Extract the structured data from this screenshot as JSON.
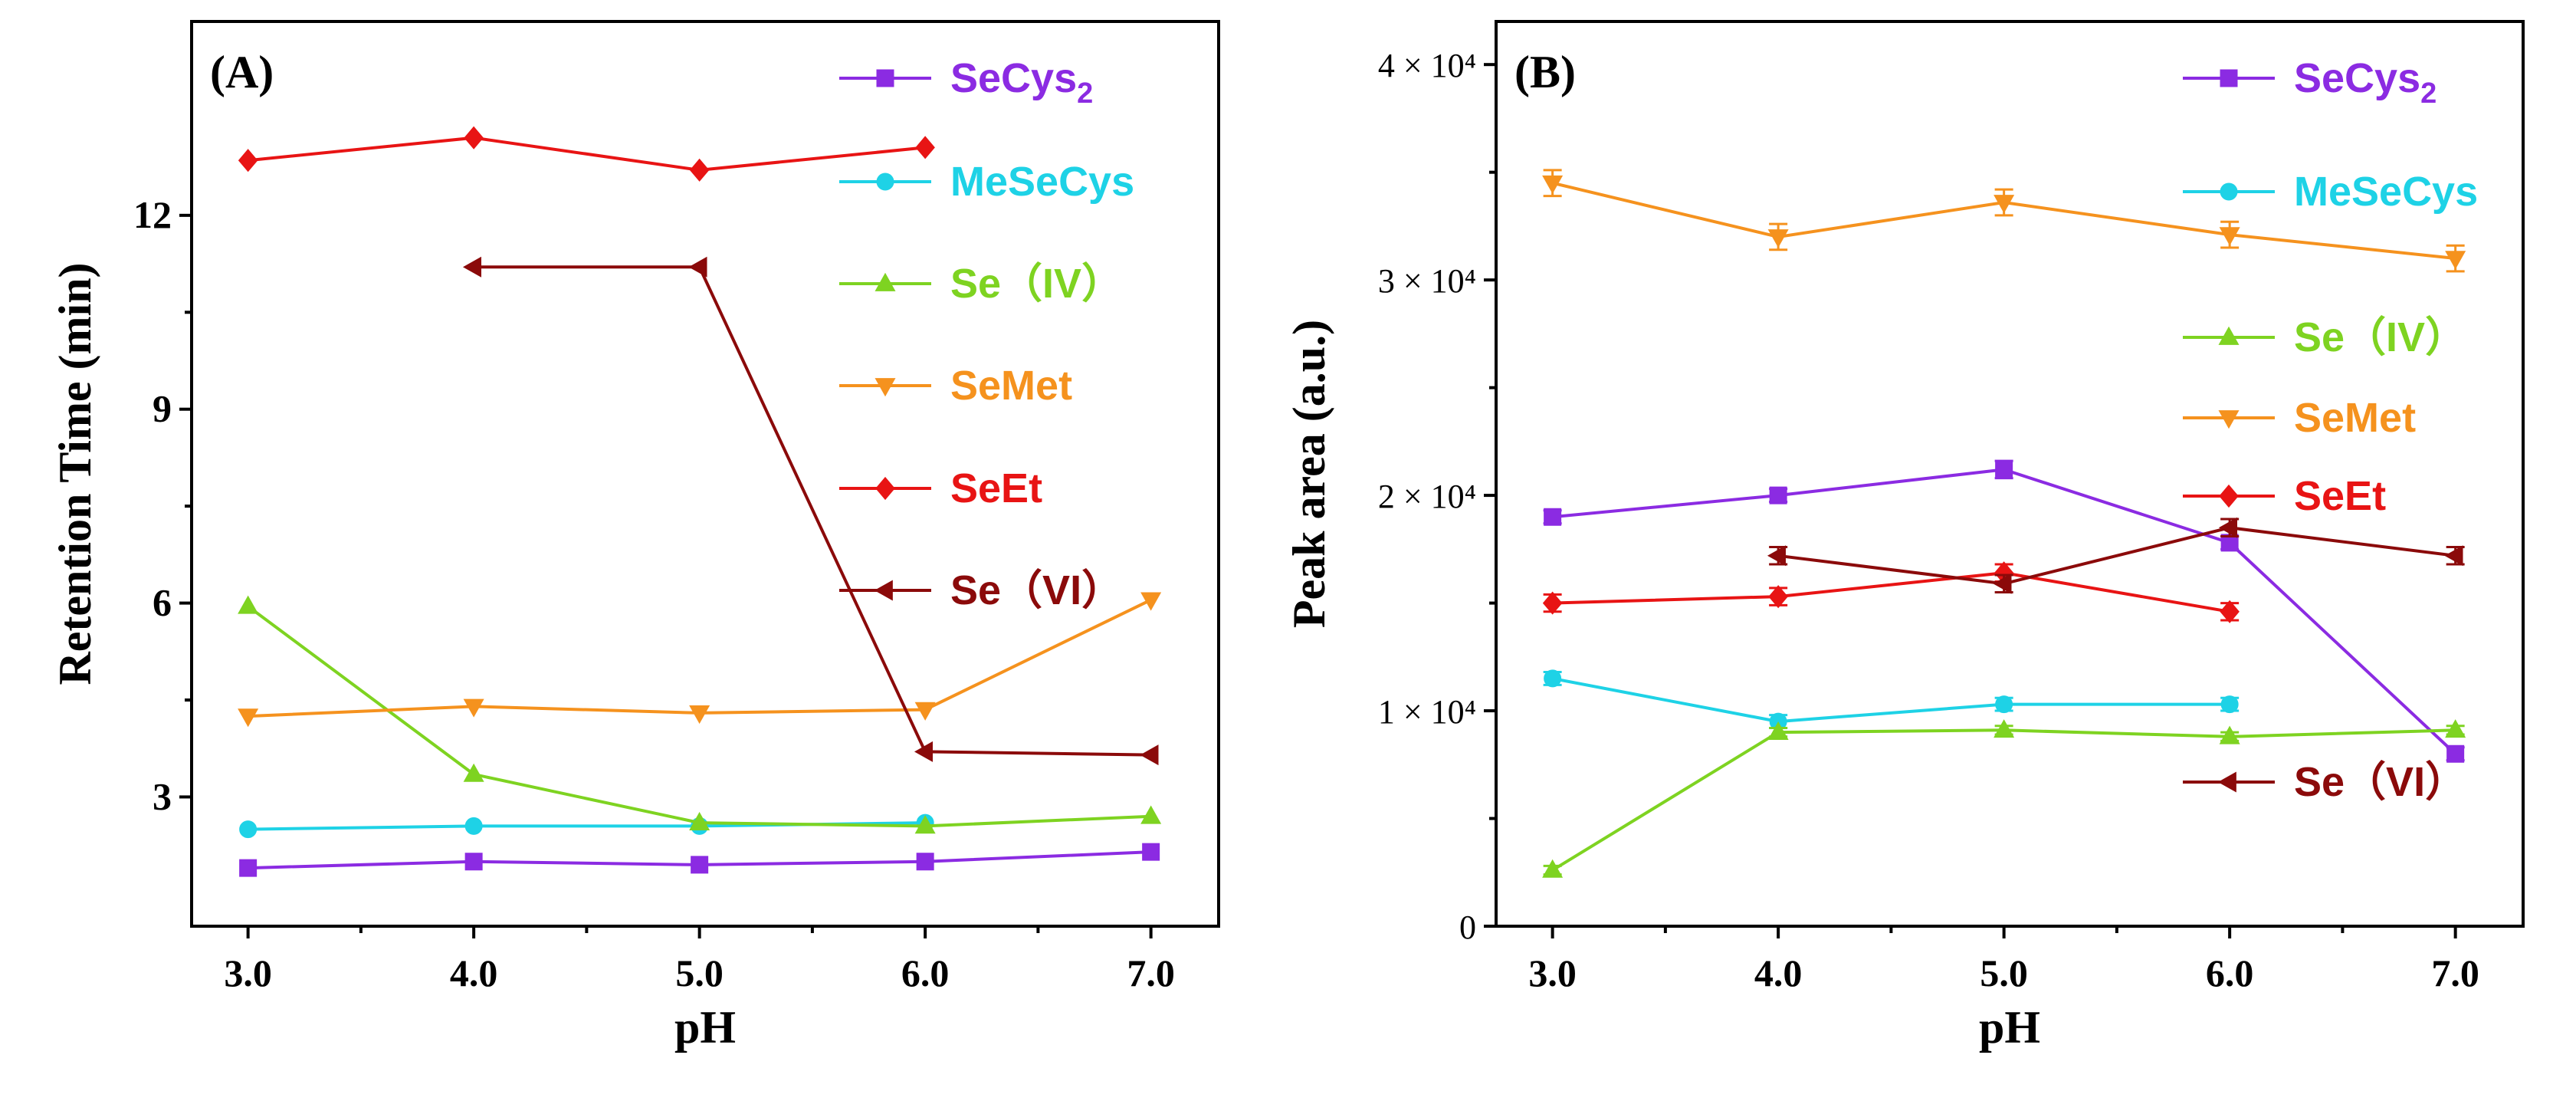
{
  "series_styles": [
    {
      "name": "SeCys2",
      "label_main": "SeCys",
      "label_sub": "2",
      "color": "#8B2BE2",
      "marker": "square"
    },
    {
      "name": "MeSeCys",
      "label_main": "MeSeCys",
      "label_sub": "",
      "color": "#1ED2E6",
      "marker": "circle"
    },
    {
      "name": "Se(IV)",
      "label_main": "Se（IV）",
      "label_sub": "",
      "color": "#7ED321",
      "marker": "triangle-up"
    },
    {
      "name": "SeMet",
      "label_main": "SeMet",
      "label_sub": "",
      "color": "#F5921E",
      "marker": "triangle-down"
    },
    {
      "name": "SeEt",
      "label_main": "SeEt",
      "label_sub": "",
      "color": "#E81414",
      "marker": "diamond"
    },
    {
      "name": "Se(VI)",
      "label_main": "Se（VI）",
      "label_sub": "",
      "color": "#8B0A0A",
      "marker": "triangle-left"
    }
  ],
  "chart_data": [
    {
      "type": "line",
      "panel_label": "(A)",
      "xlabel": "pH",
      "ylabel": "Retention Time (min)",
      "x": [
        3.0,
        4.0,
        5.0,
        6.0,
        7.0
      ],
      "x_tick_labels": [
        "3.0",
        "4.0",
        "5.0",
        "6.0",
        "7.0"
      ],
      "xlim": [
        2.75,
        7.3
      ],
      "ylim": [
        1.0,
        15.0
      ],
      "y_ticks": [
        3,
        6,
        9,
        12
      ],
      "y_tick_labels": [
        "3",
        "6",
        "9",
        "12"
      ],
      "legend_position": "top-right",
      "series": [
        {
          "name": "SeCys2",
          "values": [
            1.9,
            2.0,
            1.95,
            2.0,
            2.15
          ]
        },
        {
          "name": "MeSeCys",
          "values": [
            2.5,
            2.55,
            2.55,
            2.6,
            null
          ]
        },
        {
          "name": "Se(IV)",
          "values": [
            5.95,
            3.35,
            2.6,
            2.55,
            2.7
          ]
        },
        {
          "name": "SeMet",
          "values": [
            4.25,
            4.4,
            4.3,
            4.35,
            6.05
          ]
        },
        {
          "name": "SeEt",
          "values": [
            12.85,
            13.2,
            12.7,
            13.05,
            null
          ]
        },
        {
          "name": "Se(VI)",
          "values": [
            null,
            11.2,
            11.2,
            3.7,
            3.65
          ]
        }
      ]
    },
    {
      "type": "line",
      "panel_label": "(B)",
      "xlabel": "pH",
      "ylabel": "Peak area (a.u.)",
      "x": [
        3.0,
        4.0,
        5.0,
        6.0,
        7.0
      ],
      "x_tick_labels": [
        "3.0",
        "4.0",
        "5.0",
        "6.0",
        "7.0"
      ],
      "xlim": [
        2.75,
        7.3
      ],
      "ylim": [
        0,
        42000
      ],
      "y_ticks": [
        0,
        10000,
        20000,
        30000,
        40000
      ],
      "y_tick_labels": [
        "0",
        "1 × 10⁴",
        "2 × 10⁴",
        "3 × 10⁴",
        "4 × 10⁴"
      ],
      "legend_position": "top-right",
      "series": [
        {
          "name": "SeCys2",
          "values": [
            19000,
            20000,
            21200,
            17800,
            8000
          ],
          "errors": [
            300,
            300,
            400,
            300,
            300
          ]
        },
        {
          "name": "MeSeCys",
          "values": [
            11500,
            9500,
            10300,
            10300,
            null
          ],
          "errors": [
            300,
            300,
            300,
            300,
            null
          ]
        },
        {
          "name": "Se(IV)",
          "values": [
            2600,
            9000,
            9100,
            8800,
            9100
          ],
          "errors": [
            200,
            200,
            200,
            200,
            200
          ]
        },
        {
          "name": "SeMet",
          "values": [
            34500,
            32000,
            33600,
            32100,
            31000
          ],
          "errors": [
            600,
            600,
            600,
            600,
            600
          ]
        },
        {
          "name": "SeEt",
          "values": [
            15000,
            15300,
            16400,
            14600,
            null
          ],
          "errors": [
            400,
            400,
            400,
            400,
            null
          ]
        },
        {
          "name": "Se(VI)",
          "values": [
            null,
            17200,
            15900,
            18500,
            17200
          ],
          "errors": [
            null,
            400,
            400,
            400,
            400
          ]
        }
      ]
    }
  ]
}
